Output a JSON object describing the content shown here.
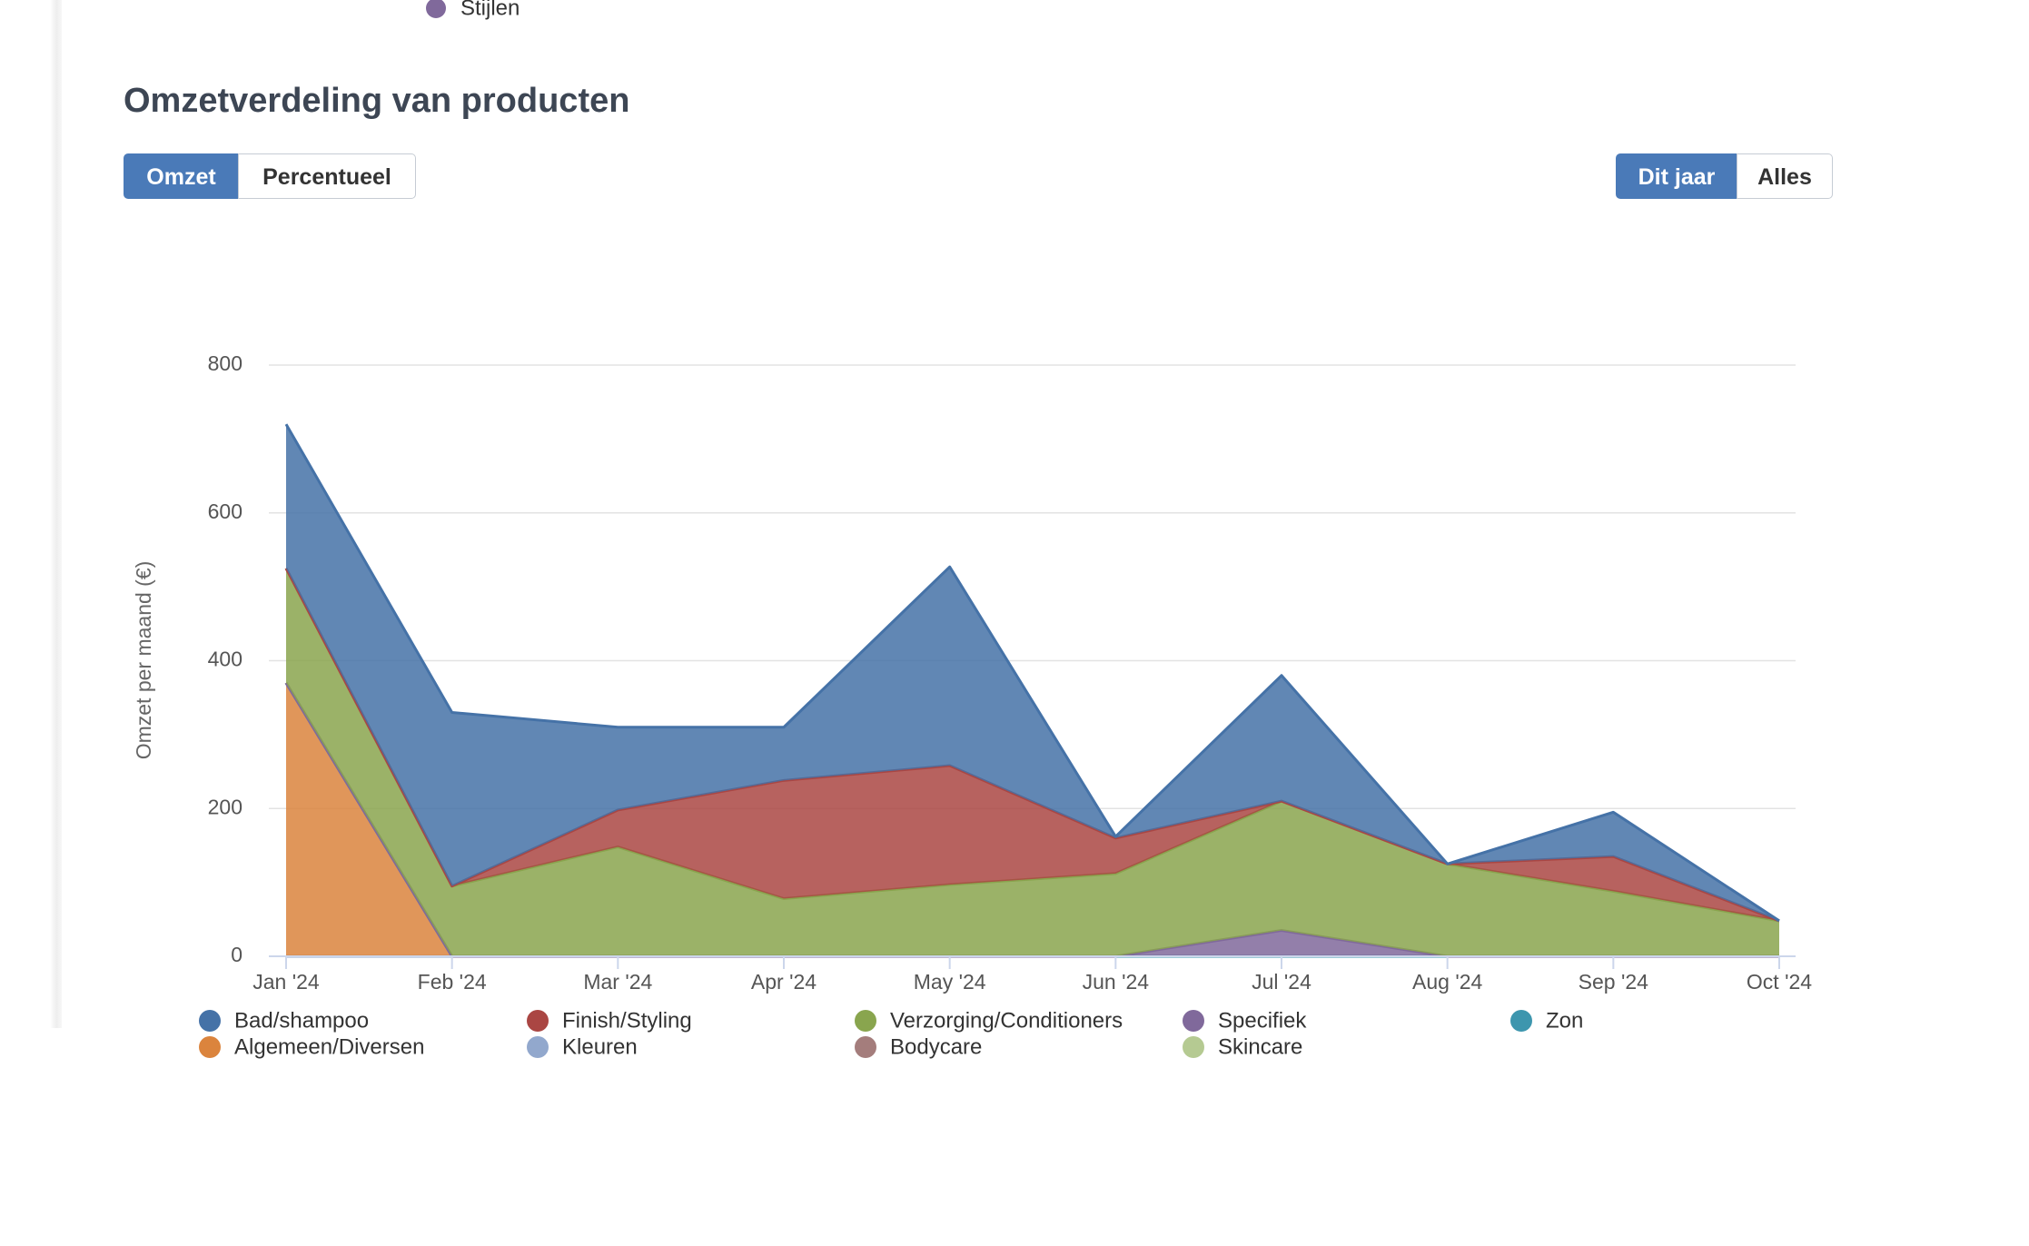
{
  "top_legend": {
    "label": "Stijlen",
    "color": "#80699b"
  },
  "controls": {
    "mode": {
      "options": [
        "Omzet",
        "Percentueel"
      ],
      "active": 0
    },
    "period": {
      "options": [
        "Dit jaar",
        "Alles"
      ],
      "active": 0
    }
  },
  "chart_data": {
    "type": "area",
    "stacked": true,
    "title": "Omzetverdeling van producten",
    "y_label": "Omzet per maand (€)",
    "categories": [
      "Jan '24",
      "Feb '24",
      "Mar '24",
      "Apr '24",
      "May '24",
      "Jun '24",
      "Jul '24",
      "Aug '24",
      "Sep '24",
      "Oct '24"
    ],
    "ylim": [
      0,
      800
    ],
    "yticks": [
      0,
      200,
      400,
      600,
      800
    ],
    "grid": true,
    "series": [
      {
        "name": "Bad/shampoo",
        "color": "#4572a7",
        "values": [
          195,
          235,
          112,
          72,
          269,
          2,
          170,
          0,
          60,
          0
        ]
      },
      {
        "name": "Finish/Styling",
        "color": "#aa4643",
        "values": [
          0,
          0,
          50,
          160,
          161,
          48,
          0,
          0,
          47,
          0
        ]
      },
      {
        "name": "Verzorging/Conditioners",
        "color": "#89a54e",
        "values": [
          155,
          95,
          148,
          78,
          97,
          112,
          175,
          125,
          88,
          48
        ]
      },
      {
        "name": "Specifiek",
        "color": "#80699b",
        "values": [
          0,
          0,
          0,
          0,
          0,
          0,
          35,
          0,
          0,
          0
        ]
      },
      {
        "name": "Zon",
        "color": "#3d96ae",
        "values": [
          0,
          0,
          0,
          0,
          0,
          0,
          0,
          0,
          0,
          0
        ]
      },
      {
        "name": "Algemeen/Diversen",
        "color": "#db843d",
        "values": [
          370,
          0,
          0,
          0,
          0,
          0,
          0,
          0,
          0,
          0
        ]
      },
      {
        "name": "Kleuren",
        "color": "#92a8cd",
        "values": [
          0,
          0,
          0,
          0,
          0,
          0,
          0,
          0,
          0,
          0
        ]
      },
      {
        "name": "Bodycare",
        "color": "#a47d7c",
        "values": [
          0,
          0,
          0,
          0,
          0,
          0,
          0,
          0,
          0,
          0
        ]
      },
      {
        "name": "Skincare",
        "color": "#b5ca92",
        "values": [
          0,
          0,
          0,
          0,
          0,
          0,
          0,
          0,
          0,
          0
        ]
      }
    ]
  }
}
